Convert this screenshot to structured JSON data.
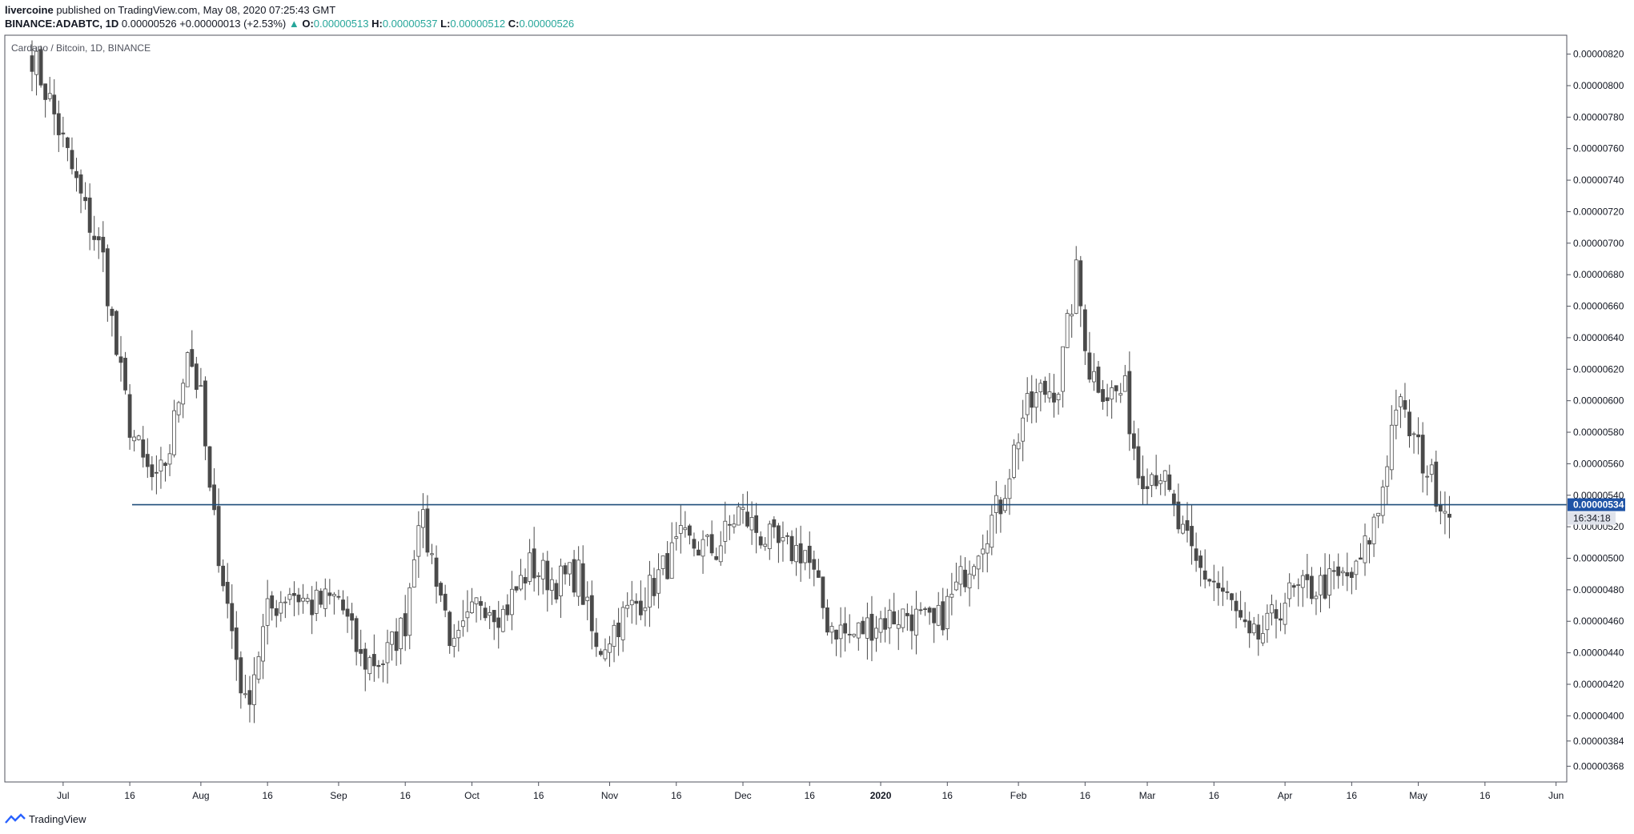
{
  "header": {
    "author": "livercoine",
    "published_text": "published on TradingView.com, May 08, 2020 07:25:43 GMT",
    "symbol": "BINANCE:ADABTC, 1D",
    "last": "0.00000526",
    "arrow": "▲",
    "change": "+0.00000013 (+2.53%)",
    "o_label": "O:",
    "o_value": "0.00000513",
    "h_label": "H:",
    "h_value": "0.00000537",
    "l_label": "L:",
    "l_value": "0.00000512",
    "c_label": "C:",
    "c_value": "0.00000526"
  },
  "legend": {
    "title": "Cardano / Bitcoin, 1D, BINANCE"
  },
  "price_tag": {
    "value": "0.00000534",
    "countdown": "16:34:18"
  },
  "footer": {
    "brand": "TradingView"
  },
  "colors": {
    "candle_up": "#ffffff",
    "candle_down": "#4a4a4a",
    "wick": "#4a4a4a",
    "level_line": "#1f4e7a",
    "price_tag_bg": "#1e53a6",
    "axis": "#50535e"
  },
  "chart_data": {
    "type": "candlestick",
    "symbol": "ADABTC",
    "ylim": [
      3.58e-06,
      8.32e-06
    ],
    "y_ticks": [
      "0.00000820",
      "0.00000800",
      "0.00000780",
      "0.00000760",
      "0.00000740",
      "0.00000720",
      "0.00000700",
      "0.00000680",
      "0.00000660",
      "0.00000640",
      "0.00000620",
      "0.00000600",
      "0.00000580",
      "0.00000560",
      "0.00000540",
      "0.00000520",
      "0.00000500",
      "0.00000480",
      "0.00000460",
      "0.00000440",
      "0.00000420",
      "0.00000400",
      "0.00000384",
      "0.00000368"
    ],
    "x_ticks": [
      {
        "label": "Jul",
        "date": "2019-07-01"
      },
      {
        "label": "16",
        "date": "2019-07-16"
      },
      {
        "label": "Aug",
        "date": "2019-08-01"
      },
      {
        "label": "16",
        "date": "2019-08-16"
      },
      {
        "label": "Sep",
        "date": "2019-09-01"
      },
      {
        "label": "16",
        "date": "2019-09-16"
      },
      {
        "label": "Oct",
        "date": "2019-10-01"
      },
      {
        "label": "16",
        "date": "2019-10-16"
      },
      {
        "label": "Nov",
        "date": "2019-11-01"
      },
      {
        "label": "16",
        "date": "2019-11-16"
      },
      {
        "label": "Dec",
        "date": "2019-12-01"
      },
      {
        "label": "16",
        "date": "2019-12-16"
      },
      {
        "label": "2020",
        "date": "2020-01-01"
      },
      {
        "label": "16",
        "date": "2020-01-16"
      },
      {
        "label": "Feb",
        "date": "2020-02-01"
      },
      {
        "label": "16",
        "date": "2020-02-16"
      },
      {
        "label": "Mar",
        "date": "2020-03-01"
      },
      {
        "label": "16",
        "date": "2020-03-16"
      },
      {
        "label": "Apr",
        "date": "2020-04-01"
      },
      {
        "label": "16",
        "date": "2020-04-16"
      },
      {
        "label": "May",
        "date": "2020-05-01"
      },
      {
        "label": "16",
        "date": "2020-05-16"
      },
      {
        "label": "Jun",
        "date": "2020-06-01"
      }
    ],
    "horizontal_line": 5.34e-06,
    "x_start": "2019-06-24",
    "close_anchors": [
      [
        "2019-06-24",
        8.2
      ],
      [
        "2019-06-28",
        7.9
      ],
      [
        "2019-07-02",
        7.55
      ],
      [
        "2019-07-06",
        7.2
      ],
      [
        "2019-07-10",
        6.9
      ],
      [
        "2019-07-13",
        6.3
      ],
      [
        "2019-07-16",
        5.85
      ],
      [
        "2019-07-19",
        5.6
      ],
      [
        "2019-07-22",
        5.45
      ],
      [
        "2019-07-25",
        5.7
      ],
      [
        "2019-07-29",
        6.35
      ],
      [
        "2019-08-01",
        6.0
      ],
      [
        "2019-08-03",
        5.4
      ],
      [
        "2019-08-07",
        4.7
      ],
      [
        "2019-08-11",
        4.05
      ],
      [
        "2019-08-16",
        4.65
      ],
      [
        "2019-08-21",
        4.8
      ],
      [
        "2019-08-26",
        4.7
      ],
      [
        "2019-09-01",
        4.75
      ],
      [
        "2019-09-06",
        4.35
      ],
      [
        "2019-09-11",
        4.35
      ],
      [
        "2019-09-16",
        4.6
      ],
      [
        "2019-09-19",
        5.3
      ],
      [
        "2019-09-23",
        4.9
      ],
      [
        "2019-09-27",
        4.4
      ],
      [
        "2019-10-03",
        4.75
      ],
      [
        "2019-10-08",
        4.65
      ],
      [
        "2019-10-14",
        4.95
      ],
      [
        "2019-10-20",
        4.85
      ],
      [
        "2019-10-25",
        4.9
      ],
      [
        "2019-10-29",
        4.4
      ],
      [
        "2019-11-03",
        4.6
      ],
      [
        "2019-11-10",
        4.8
      ],
      [
        "2019-11-17",
        5.1
      ],
      [
        "2019-11-25",
        5.05
      ],
      [
        "2019-11-30",
        5.3
      ],
      [
        "2019-12-05",
        5.15
      ],
      [
        "2019-12-10",
        5.05
      ],
      [
        "2019-12-15",
        5.05
      ],
      [
        "2019-12-20",
        4.6
      ],
      [
        "2019-12-25",
        4.5
      ],
      [
        "2019-12-31",
        4.6
      ],
      [
        "2020-01-07",
        4.65
      ],
      [
        "2020-01-13",
        4.55
      ],
      [
        "2020-01-18",
        4.8
      ],
      [
        "2020-01-23",
        5.1
      ],
      [
        "2020-01-28",
        5.35
      ],
      [
        "2020-02-02",
        5.9
      ],
      [
        "2020-02-06",
        6.05
      ],
      [
        "2020-02-10",
        6.1
      ],
      [
        "2020-02-14",
        6.8
      ],
      [
        "2020-02-17",
        6.2
      ],
      [
        "2020-02-21",
        6.05
      ],
      [
        "2020-02-25",
        6.05
      ],
      [
        "2020-02-28",
        5.55
      ],
      [
        "2020-03-04",
        5.55
      ],
      [
        "2020-03-08",
        5.2
      ],
      [
        "2020-03-12",
        4.95
      ],
      [
        "2020-03-16",
        4.85
      ],
      [
        "2020-03-20",
        4.7
      ],
      [
        "2020-03-24",
        4.45
      ],
      [
        "2020-03-28",
        4.55
      ],
      [
        "2020-04-01",
        4.75
      ],
      [
        "2020-04-06",
        4.8
      ],
      [
        "2020-04-12",
        4.85
      ],
      [
        "2020-04-17",
        4.9
      ],
      [
        "2020-04-22",
        5.3
      ],
      [
        "2020-04-26",
        6.0
      ],
      [
        "2020-04-30",
        5.75
      ],
      [
        "2020-05-04",
        5.5
      ],
      [
        "2020-05-08",
        5.26
      ]
    ]
  }
}
